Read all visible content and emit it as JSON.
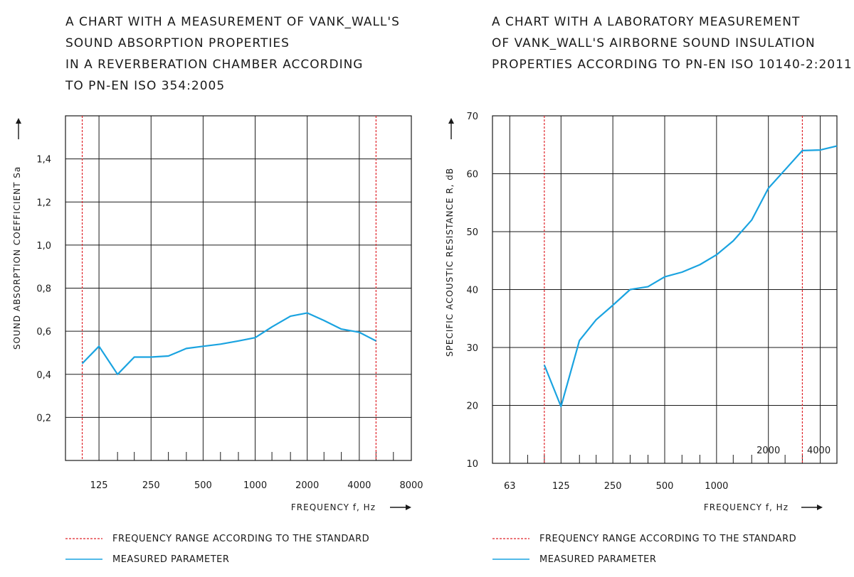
{
  "titles": {
    "left": [
      "A CHART WITH A MEASUREMENT OF VANK_WALL'S",
      "SOUND ABSORPTION PROPERTIES",
      "IN A REVERBERATION CHAMBER ACCORDING",
      "TO PN-EN ISO 354:2005"
    ],
    "right": [
      "A CHART WITH A LABORATORY MEASUREMENT",
      "OF VANK_WALL'S AIRBORNE SOUND INSULATION",
      "PROPERTIES ACCORDING TO PN-EN ISO 10140-2:2011"
    ]
  },
  "legend": {
    "range": "FREQUENCY RANGE ACCORDING TO THE STANDARD",
    "measured": "MEASURED PARAMETER"
  },
  "colors": {
    "measured": "#1aa3e0",
    "range": "#e0242a",
    "grid": "#1a1a1a"
  },
  "chart_data": [
    {
      "type": "line",
      "xlabel": "FREQUENCY  f, Hz",
      "ylabel": "SOUND ABSORPTION COEFFICIENT  Sa",
      "x_scale": "log (one-third octave bands)",
      "xlim": [
        80,
        8000
      ],
      "ylim": [
        0,
        1.6
      ],
      "x_tick_labels": [
        [
          "125",
          125
        ],
        [
          "250",
          250
        ],
        [
          "500",
          500
        ],
        [
          "1000",
          1000
        ],
        [
          "2000",
          2000
        ],
        [
          "4000",
          4000
        ],
        [
          "8000",
          8000
        ]
      ],
      "y_tick_labels": [
        [
          "0,2",
          0.2
        ],
        [
          "0,4",
          0.4
        ],
        [
          "0,6",
          0.6
        ],
        [
          "0,8",
          0.8
        ],
        [
          "1,0",
          1.0
        ],
        [
          "1,2",
          1.2
        ],
        [
          "1,4",
          1.4
        ]
      ],
      "reference_lines_x": [
        100,
        5000
      ],
      "series": [
        {
          "x": [
            100,
            125,
            160,
            200,
            250,
            315,
            400,
            500,
            630,
            800,
            1000,
            1250,
            1600,
            2000,
            2500,
            3150,
            4000,
            5000
          ],
          "y": [
            0.45,
            0.53,
            0.4,
            0.48,
            0.48,
            0.485,
            0.52,
            0.53,
            0.54,
            0.555,
            0.57,
            0.62,
            0.67,
            0.685,
            0.65,
            0.61,
            0.595,
            0.555
          ]
        }
      ]
    },
    {
      "type": "line",
      "xlabel": "FREQUENCY  f, Hz",
      "ylabel": "SPECIFIC ACOUSTIC RESISTANCE  R, dB",
      "x_scale": "log (one-third octave bands)",
      "xlim": [
        50,
        5000
      ],
      "ylim": [
        10,
        70
      ],
      "x_tick_labels": [
        [
          "63",
          63
        ],
        [
          "125",
          125
        ],
        [
          "250",
          250
        ],
        [
          "500",
          500
        ],
        [
          "1000",
          1000
        ],
        [
          "2000",
          2000
        ],
        [
          "4000",
          4000
        ]
      ],
      "y_tick_labels": [
        [
          "10",
          10
        ],
        [
          "20",
          20
        ],
        [
          "30",
          30
        ],
        [
          "40",
          40
        ],
        [
          "50",
          50
        ],
        [
          "60",
          60
        ],
        [
          "70",
          70
        ]
      ],
      "reference_lines_x": [
        100,
        3150
      ],
      "series": [
        {
          "x": [
            100,
            125,
            160,
            200,
            250,
            315,
            400,
            500,
            630,
            800,
            1000,
            1250,
            1600,
            2000,
            2500,
            3150,
            4000,
            5000
          ],
          "y": [
            27,
            19.8,
            31.2,
            34.8,
            37.3,
            40,
            40.5,
            42.2,
            43,
            44.3,
            46,
            48.4,
            52,
            57.5,
            60.7,
            64,
            64.1,
            64.8
          ]
        }
      ]
    }
  ]
}
